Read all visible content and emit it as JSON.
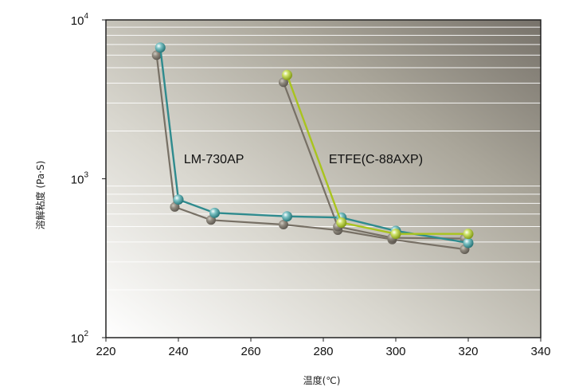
{
  "chart_data": {
    "type": "line",
    "xlabel": "温度(℃)",
    "ylabel": "溶解粘度 (Pa·S)",
    "xlim": [
      220,
      340
    ],
    "ylim": [
      100,
      10000
    ],
    "yscale": "log",
    "x_ticks": [
      "220",
      "240",
      "260",
      "280",
      "300",
      "320",
      "340"
    ],
    "y_ticks": [
      {
        "value": 100,
        "base": "10",
        "exp": "2"
      },
      {
        "value": 1000,
        "base": "10",
        "exp": "3"
      },
      {
        "value": 10000,
        "base": "10",
        "exp": "4"
      }
    ],
    "grid": "horizontal",
    "series": [
      {
        "name": "LM-730AP",
        "color": "#2f8b8e",
        "shadow_color": "#777065",
        "points": [
          [
            235,
            6700
          ],
          [
            240,
            740
          ],
          [
            250,
            610
          ],
          [
            270,
            580
          ],
          [
            285,
            570
          ],
          [
            300,
            470
          ],
          [
            320,
            395
          ]
        ],
        "shadow_points": [
          [
            234,
            6000
          ],
          [
            239,
            665
          ],
          [
            249,
            550
          ],
          [
            269,
            515
          ],
          [
            284,
            475
          ],
          [
            299,
            415
          ],
          [
            319,
            360
          ]
        ]
      },
      {
        "name": "ETFE(C-88AXP)",
        "color": "#a9c41e",
        "shadow_color": "#777065",
        "points": [
          [
            270,
            4500
          ],
          [
            285,
            530
          ],
          [
            300,
            450
          ],
          [
            320,
            450
          ]
        ],
        "shadow_points": [
          [
            269,
            4050
          ],
          [
            284,
            500
          ],
          [
            299,
            425
          ],
          [
            319,
            420
          ]
        ]
      }
    ]
  }
}
